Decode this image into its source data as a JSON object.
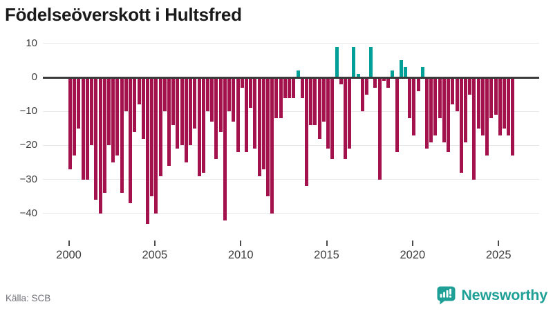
{
  "title": "Födelseöverskott i Hultsfred",
  "source": "Källa: SCB",
  "logo": {
    "brand": "Newsworthy",
    "icon": "newsworthy-bars-icon"
  },
  "colors": {
    "background": "#ffffff",
    "bar_negative": "#a3124c",
    "bar_positive": "#00a099",
    "zero_line": "#3a3a3a",
    "gridline": "#e7e7e7",
    "axis_text": "#3d3d3d",
    "title_text": "#1a1a1a",
    "source_text": "#6e7076",
    "brand_teal": "#1fa096"
  },
  "chart_data": {
    "type": "bar",
    "title": "Födelseöverskott i Hultsfred",
    "legend": "none",
    "grid": "horizontal",
    "ylim": [
      -46,
      13
    ],
    "y_ticks": [
      10,
      0,
      -10,
      -20,
      -30,
      -40
    ],
    "y_tick_labels": [
      "10",
      "0",
      "−10",
      "−20",
      "−30",
      "−40"
    ],
    "x_tick_labels": [
      "2000",
      "2005",
      "2010",
      "2015",
      "2020",
      "2025"
    ],
    "x_tick_indices": [
      0,
      20,
      40,
      60,
      80,
      100
    ],
    "quarters": [
      "2000 Q1",
      "2000 Q2",
      "2000 Q3",
      "2000 Q4",
      "2001 Q1",
      "2001 Q2",
      "2001 Q3",
      "2001 Q4",
      "2002 Q1",
      "2002 Q2",
      "2002 Q3",
      "2002 Q4",
      "2003 Q1",
      "2003 Q2",
      "2003 Q3",
      "2003 Q4",
      "2004 Q1",
      "2004 Q2",
      "2004 Q3",
      "2004 Q4",
      "2005 Q1",
      "2005 Q2",
      "2005 Q3",
      "2005 Q4",
      "2006 Q1",
      "2006 Q2",
      "2006 Q3",
      "2006 Q4",
      "2007 Q1",
      "2007 Q2",
      "2007 Q3",
      "2007 Q4",
      "2008 Q1",
      "2008 Q2",
      "2008 Q3",
      "2008 Q4",
      "2009 Q1",
      "2009 Q2",
      "2009 Q3",
      "2009 Q4",
      "2010 Q1",
      "2010 Q2",
      "2010 Q3",
      "2010 Q4",
      "2011 Q1",
      "2011 Q2",
      "2011 Q3",
      "2011 Q4",
      "2012 Q1",
      "2012 Q2",
      "2012 Q3",
      "2012 Q4",
      "2013 Q1",
      "2013 Q2",
      "2013 Q3",
      "2013 Q4",
      "2014 Q1",
      "2014 Q2",
      "2014 Q3",
      "2014 Q4",
      "2015 Q1",
      "2015 Q2",
      "2015 Q3",
      "2015 Q4",
      "2016 Q1",
      "2016 Q2",
      "2016 Q3",
      "2016 Q4",
      "2017 Q1",
      "2017 Q2",
      "2017 Q3",
      "2017 Q4",
      "2018 Q1",
      "2018 Q2",
      "2018 Q3",
      "2018 Q4",
      "2019 Q1",
      "2019 Q2",
      "2019 Q3",
      "2019 Q4",
      "2020 Q1",
      "2020 Q2",
      "2020 Q3",
      "2020 Q4",
      "2021 Q1",
      "2021 Q2",
      "2021 Q3",
      "2021 Q4",
      "2022 Q1",
      "2022 Q2",
      "2022 Q3",
      "2022 Q4",
      "2023 Q1",
      "2023 Q2",
      "2023 Q3",
      "2023 Q4",
      "2024 Q1",
      "2024 Q2",
      "2024 Q3",
      "2024 Q4",
      "2025 Q1",
      "2025 Q2",
      "2025 Q3",
      "2025 Q4"
    ],
    "values": [
      -27,
      -23,
      -15,
      -30,
      -30,
      -20,
      -36,
      -40,
      -34,
      -20,
      -25,
      -23,
      -34,
      -10,
      -37,
      -16,
      -8,
      -18,
      -43,
      -35,
      -40,
      -29,
      -10,
      -26,
      -14,
      -21,
      -20,
      -25,
      -20,
      -15,
      -29,
      -28,
      -10,
      -13,
      -24,
      -16,
      -42,
      -10,
      -13,
      -22,
      -3,
      -22,
      -9,
      -21,
      -29,
      -27,
      -35,
      -40,
      -12,
      -12,
      -6,
      -6,
      -6,
      2,
      -6,
      -32,
      -14,
      -14,
      -18,
      -13,
      -21,
      -24,
      9,
      -2,
      -24,
      -21,
      9,
      1,
      -10,
      -5,
      9,
      -3,
      -30,
      -1,
      -3,
      2,
      -22,
      5,
      3,
      -12,
      -17,
      -4,
      3,
      -21,
      -19,
      -17,
      -12,
      -19,
      -22,
      -8,
      -10,
      -28,
      -19,
      -5,
      -30,
      -15,
      -17,
      -23,
      -12,
      -11,
      -17,
      -15,
      -17,
      -23
    ]
  }
}
